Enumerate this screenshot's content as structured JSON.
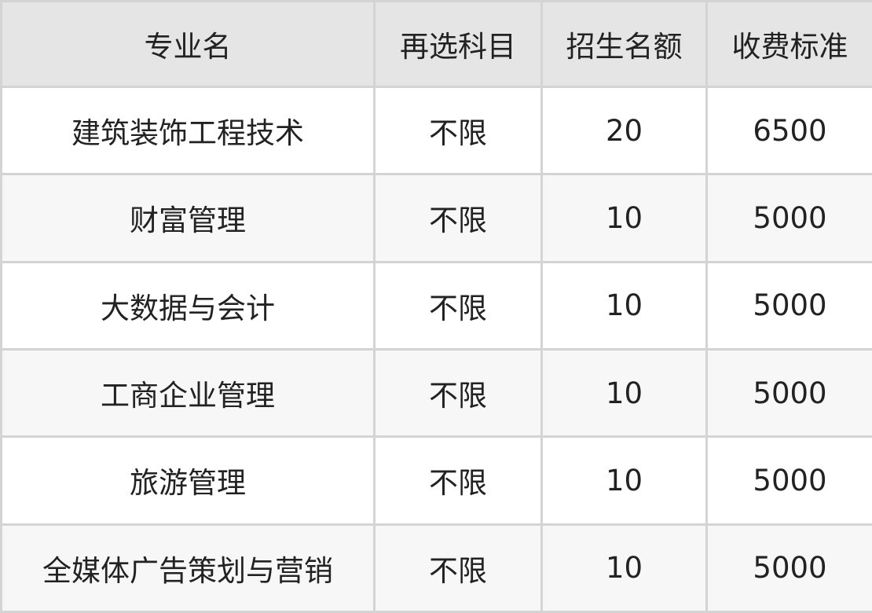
{
  "table": {
    "headers": [
      "专业名",
      "再选科目",
      "招生名额",
      "收费标准"
    ],
    "rows": [
      [
        "建筑装饰工程技术",
        "不限",
        "20",
        "6500"
      ],
      [
        "财富管理",
        "不限",
        "10",
        "5000"
      ],
      [
        "大数据与会计",
        "不限",
        "10",
        "5000"
      ],
      [
        "工商企业管理",
        "不限",
        "10",
        "5000"
      ],
      [
        "旅游管理",
        "不限",
        "10",
        "5000"
      ],
      [
        "全媒体广告策划与营销",
        "不限",
        "10",
        "5000"
      ]
    ]
  }
}
